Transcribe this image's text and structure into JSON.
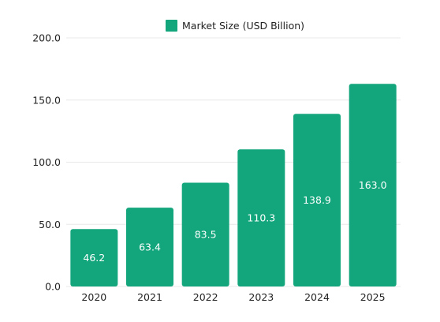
{
  "chart_data": {
    "type": "bar",
    "categories": [
      "2020",
      "2021",
      "2022",
      "2023",
      "2024",
      "2025"
    ],
    "series": [
      {
        "name": "Market Size (USD Billion)",
        "values": [
          46.2,
          63.4,
          83.5,
          110.3,
          138.9,
          163.0
        ],
        "color": "#13a67c"
      }
    ],
    "value_labels": [
      "46.2",
      "63.4",
      "83.5",
      "110.3",
      "138.9",
      "163.0"
    ],
    "ylim": [
      0,
      200
    ],
    "y_ticks": [
      "0.0",
      "50.0",
      "100.0",
      "150.0",
      "200.0"
    ],
    "grid": true,
    "legend_position": "top"
  }
}
